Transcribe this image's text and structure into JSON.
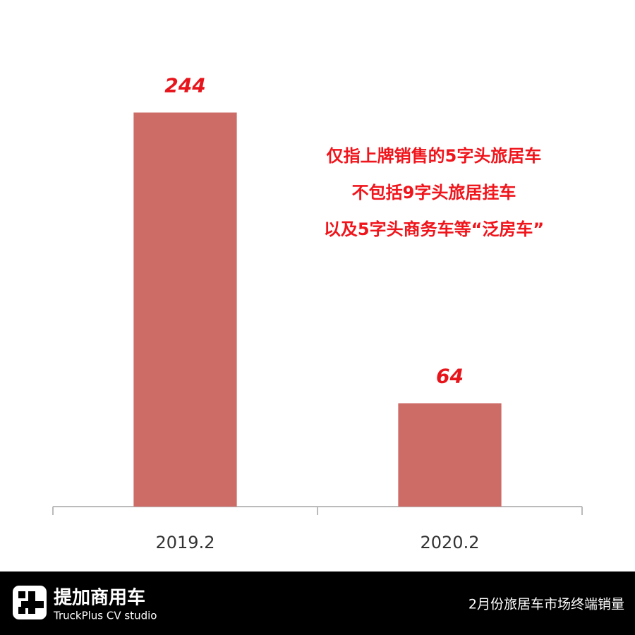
{
  "chart_data": {
    "type": "bar",
    "categories": [
      "2019.2",
      "2020.2"
    ],
    "values": [
      244,
      64
    ],
    "color": "#cd6b67",
    "ylim": [
      0,
      270
    ],
    "annotations": [
      "仅指上牌销售的5字头旅居车",
      "不包括9字头旅居挂车",
      "以及5字头商务车等“泛房车”"
    ]
  },
  "footer": {
    "brand": "提加商用车",
    "brand_en": "TruckPlus CV studio",
    "caption": "2月份旅居车市场终端销量"
  }
}
